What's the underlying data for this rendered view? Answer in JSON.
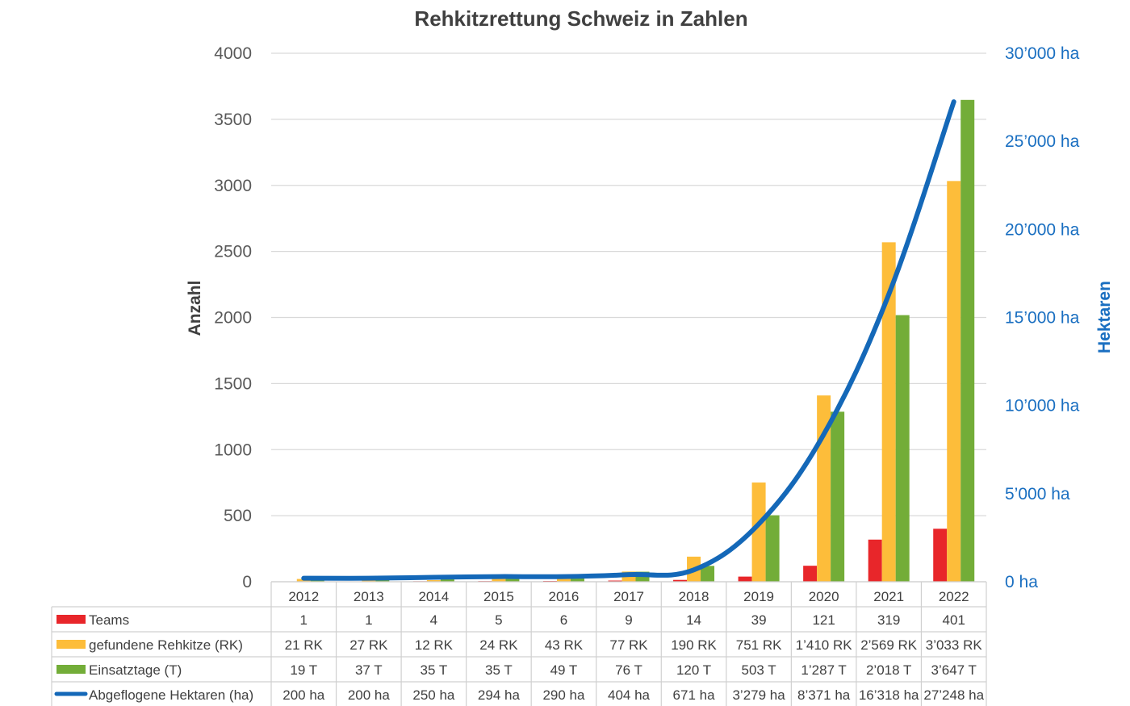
{
  "chart_data": {
    "type": "bar",
    "title": "Rehkitzrettung Schweiz in Zahlen",
    "ylabel": "Anzahl",
    "y2label": "Hektaren",
    "ylim": [
      0,
      4000
    ],
    "y2lim": [
      0,
      30000
    ],
    "yticks": [
      "0",
      "500",
      "1000",
      "1500",
      "2000",
      "2500",
      "3000",
      "3500",
      "4000"
    ],
    "y2ticks": [
      "0 ha",
      "5’000 ha",
      "10’000 ha",
      "15’000 ha",
      "20’000 ha",
      "25’000 ha",
      "30’000 ha"
    ],
    "categories": [
      "2012",
      "2013",
      "2014",
      "2015",
      "2016",
      "2017",
      "2018",
      "2019",
      "2020",
      "2021",
      "2022"
    ],
    "series": [
      {
        "name": "Teams",
        "kind": "bar",
        "axis": "left",
        "color": "#e8262a",
        "values": [
          1,
          1,
          4,
          5,
          6,
          9,
          14,
          39,
          121,
          319,
          401
        ],
        "labels": [
          "1",
          "1",
          "4",
          "5",
          "6",
          "9",
          "14",
          "39",
          "121",
          "319",
          "401"
        ]
      },
      {
        "name": "gefundene Rehkitze (RK)",
        "kind": "bar",
        "axis": "left",
        "color": "#fdbd3a",
        "values": [
          21,
          27,
          12,
          24,
          43,
          77,
          190,
          751,
          1410,
          2569,
          3033
        ],
        "labels": [
          "21 RK",
          "27 RK",
          "12 RK",
          "24 RK",
          "43 RK",
          "77 RK",
          "190 RK",
          "751 RK",
          "1’410 RK",
          "2’569 RK",
          "3’033 RK"
        ]
      },
      {
        "name": "Einsatztage (T)",
        "kind": "bar",
        "axis": "left",
        "color": "#73ad38",
        "values": [
          19,
          37,
          35,
          35,
          49,
          76,
          120,
          503,
          1287,
          2018,
          3647
        ],
        "labels": [
          "19 T",
          "37 T",
          "35 T",
          "35 T",
          "49 T",
          "76 T",
          "120 T",
          "503 T",
          "1’287 T",
          "2’018 T",
          "3’647 T"
        ]
      },
      {
        "name": "Abgeflogene Hektaren (ha)",
        "kind": "line",
        "axis": "right",
        "color": "#1468b8",
        "values": [
          200,
          200,
          250,
          294,
          290,
          404,
          671,
          3279,
          8371,
          16318,
          27248
        ],
        "labels": [
          "200 ha",
          "200 ha",
          "250 ha",
          "294 ha",
          "290 ha",
          "404 ha",
          "671 ha",
          "3’279 ha",
          "8’371 ha",
          "16’318 ha",
          "27’248 ha"
        ]
      }
    ],
    "grid": true,
    "legend": "data-table"
  }
}
